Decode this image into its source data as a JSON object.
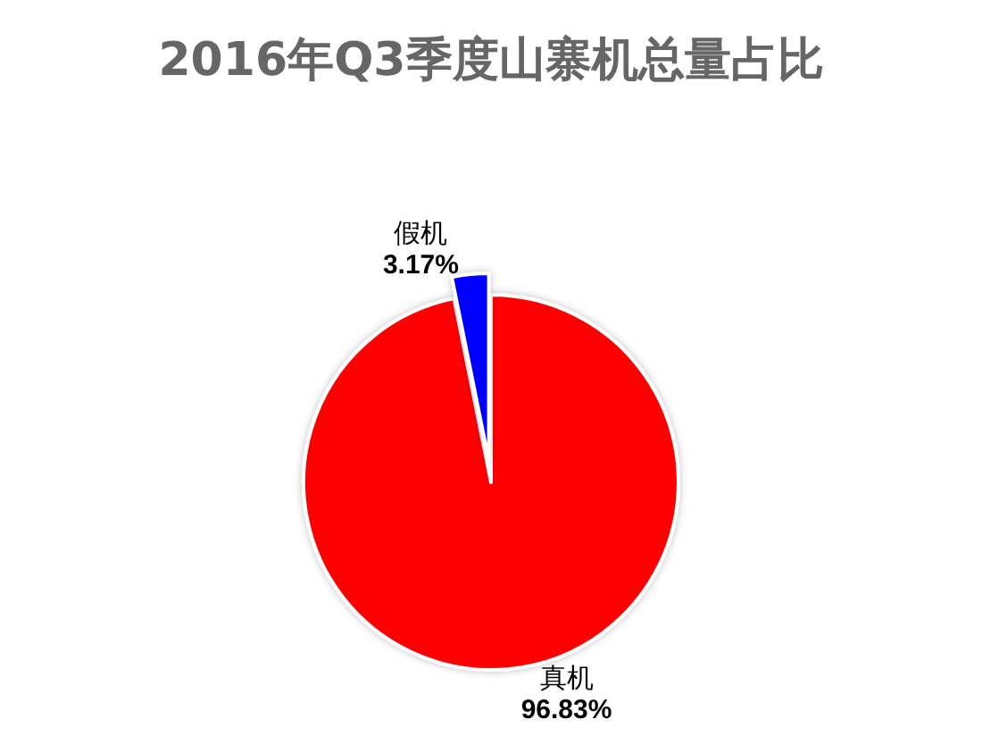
{
  "chart_data": {
    "type": "pie",
    "title": "2016年Q3季度山寨机总量占比",
    "categories": [
      "真机",
      "假机"
    ],
    "values": [
      96.83,
      3.17
    ],
    "colors": [
      "#ff0000",
      "#0000ff"
    ],
    "value_labels": [
      "96.83%",
      "3.17%"
    ],
    "legend": false
  }
}
